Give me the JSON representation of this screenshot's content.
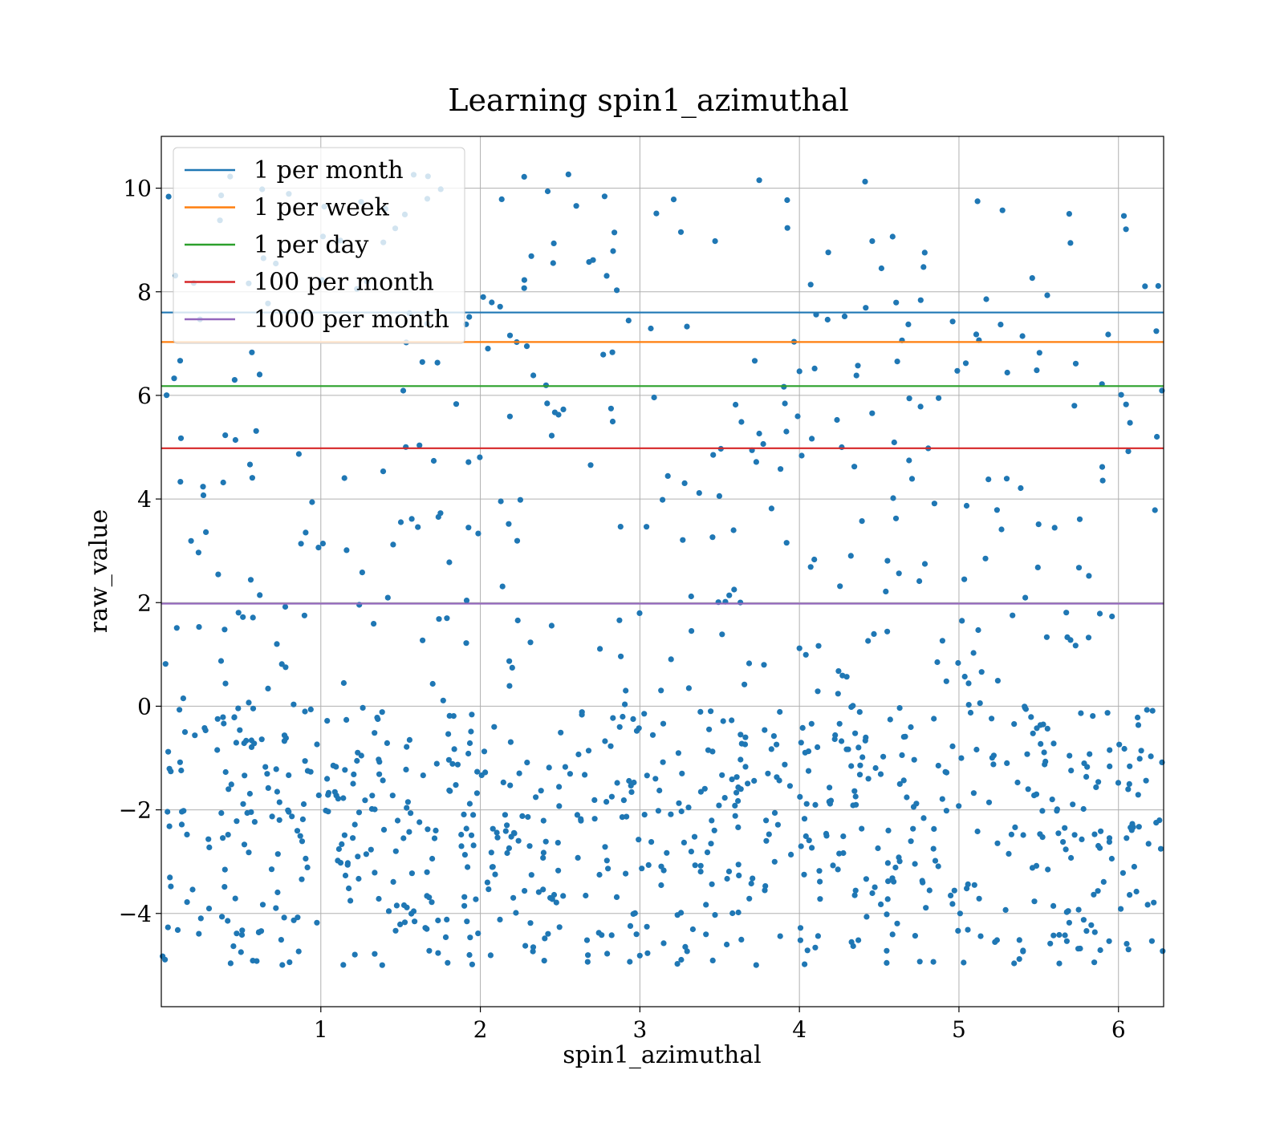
{
  "chart_data": {
    "type": "scatter",
    "title": "Learning spin1_azimuthal",
    "xlabel": "spin1_azimuthal",
    "ylabel": "raw_value",
    "xlim": [
      0,
      6.283
    ],
    "ylim": [
      -5.8,
      11.0
    ],
    "xticks": [
      1,
      2,
      3,
      4,
      5,
      6
    ],
    "yticks": [
      -4,
      -2,
      0,
      2,
      4,
      6,
      8,
      10
    ],
    "xtick_labels": [
      "1",
      "2",
      "3",
      "4",
      "5",
      "6"
    ],
    "ytick_labels": [
      "−4",
      "−2",
      "0",
      "2",
      "4",
      "6",
      "8",
      "10"
    ],
    "grid": true,
    "legend_position": "top-left",
    "point_color": "#1f77b4",
    "point_count": 1100,
    "point_seed": 12345,
    "reference_lines": [
      {
        "name": "1 per month",
        "y": 7.6,
        "color": "#1f77b4"
      },
      {
        "name": "1 per week",
        "y": 7.03,
        "color": "#ff7f0e"
      },
      {
        "name": "1 per day",
        "y": 6.18,
        "color": "#2ca02c"
      },
      {
        "name": "100 per month",
        "y": 4.98,
        "color": "#d62728"
      },
      {
        "name": "1000 per month",
        "y": 1.98,
        "color": "#9467bd"
      }
    ]
  }
}
